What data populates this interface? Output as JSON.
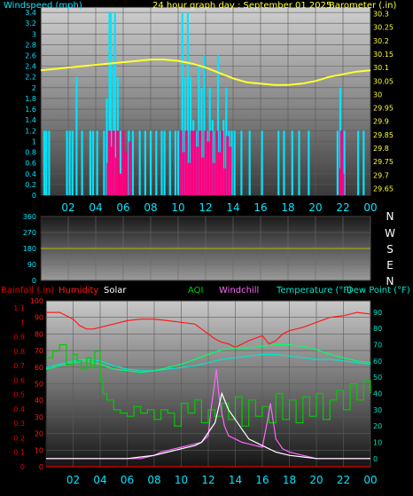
{
  "colors": {
    "windspeed": "#00e5ff",
    "gust": "#ff0080",
    "barometer": "#ffff33",
    "direction_line": "#b8b800",
    "rain": "#e00000",
    "humidity": "#ff1a1a",
    "solar": "#ffffff",
    "aqi": "#00cc00",
    "windchill": "#ff66ff",
    "temperature": "#00e5cc",
    "dewpoint": "#00ff66",
    "axis_left": "#00e5ff",
    "axis_right": "#ffff33",
    "hour_labels": "#00e5ff"
  },
  "chart_data": [
    {
      "type": "bar",
      "title": "24 hour graph day : September 01 2025",
      "ylabel_left": "Windspeed (mph)",
      "ylabel_right": "Barometer (.in)",
      "y_left_ticks": [
        "0",
        "0.2",
        "0.4",
        "0.6",
        "0.8",
        "1",
        "1.2",
        "1.4",
        "1.6",
        "1.8",
        "2",
        "2.2",
        "2.4",
        "2.6",
        "2.8",
        "3",
        "3.2",
        "3.4"
      ],
      "y_right_ticks": [
        "29.65",
        "29.7",
        "29.75",
        "29.8",
        "29.85",
        "29.9",
        "29.95",
        "30",
        "30.05",
        "30.1",
        "30.15",
        "30.2",
        "30.25",
        "30.3"
      ],
      "x_ticks": [
        "02",
        "04",
        "06",
        "08",
        "10",
        "12",
        "14",
        "16",
        "18",
        "20",
        "22",
        "00"
      ],
      "ylim_left": [
        0,
        3.5
      ],
      "ylim_right": [
        29.625,
        30.325
      ],
      "series": [
        {
          "name": "Windspeed (mph)",
          "type": "bar",
          "x": [
            0.25,
            0.4,
            0.6,
            1.9,
            2.1,
            2.3,
            2.6,
            3.0,
            3.6,
            3.8,
            4.1,
            4.6,
            4.8,
            5.0,
            5.1,
            5.3,
            5.4,
            5.6,
            5.8,
            6.0,
            6.4,
            6.7,
            7.2,
            7.6,
            8.0,
            8.4,
            8.8,
            9.0,
            9.4,
            9.8,
            10.0,
            10.3,
            10.5,
            10.7,
            10.9,
            11.1,
            11.3,
            11.5,
            11.7,
            11.9,
            12.1,
            12.3,
            12.5,
            12.7,
            12.9,
            13.1,
            13.3,
            13.5,
            13.7,
            13.9,
            14.1,
            14.6,
            15.2,
            16.1,
            17.3,
            17.7,
            18.3,
            18.8,
            19.5,
            21.6,
            21.8,
            22.1,
            23.1,
            23.5
          ],
          "values": [
            1.2,
            1.2,
            1.2,
            1.2,
            1.2,
            1.2,
            2.2,
            1.2,
            1.2,
            1.2,
            1.2,
            1.2,
            1.8,
            3.4,
            3.4,
            2.4,
            3.4,
            2.2,
            1.2,
            1.2,
            1.2,
            1.2,
            1.2,
            1.2,
            1.2,
            1.2,
            1.2,
            1.2,
            1.2,
            1.2,
            1.2,
            3.4,
            2.2,
            3.4,
            2.2,
            1.4,
            1.2,
            2.4,
            2.0,
            2.6,
            1.2,
            2.0,
            1.4,
            1.2,
            2.6,
            1.2,
            1.4,
            2.0,
            1.2,
            1.2,
            1.2,
            1.2,
            1.2,
            1.2,
            1.2,
            1.2,
            1.2,
            1.2,
            1.2,
            1.2,
            2.0,
            1.2,
            1.2,
            1.2
          ]
        },
        {
          "name": "Wind gust (mph)",
          "type": "bar",
          "x": [
            4.9,
            5.0,
            5.2,
            5.3,
            5.5,
            5.6,
            5.8,
            6.0,
            6.2,
            6.5,
            10.2,
            10.4,
            10.6,
            10.8,
            11.0,
            11.2,
            11.4,
            11.6,
            11.8,
            12.0,
            12.2,
            12.4,
            12.6,
            12.8,
            13.0,
            13.2,
            13.4,
            13.6,
            13.8,
            21.8,
            21.9,
            22.0
          ],
          "values": [
            0.6,
            1.2,
            0.9,
            1.2,
            0.7,
            1.2,
            0.4,
            1.2,
            0.8,
            1.0,
            1.2,
            0.8,
            1.2,
            0.6,
            1.2,
            1.2,
            0.9,
            1.2,
            0.7,
            1.2,
            1.0,
            1.2,
            0.6,
            1.2,
            0.8,
            1.2,
            0.5,
            1.1,
            0.9,
            0.5,
            1.2,
            0.4
          ]
        },
        {
          "name": "Barometer (.in)",
          "type": "line",
          "x": [
            0,
            1,
            2,
            3,
            4,
            5,
            6,
            7,
            8,
            9,
            10,
            11,
            12,
            13,
            14,
            15,
            16,
            17,
            18,
            19,
            20,
            21,
            22,
            23,
            24
          ],
          "values": [
            30.09,
            30.095,
            30.1,
            30.105,
            30.11,
            30.115,
            30.12,
            30.125,
            30.13,
            30.13,
            30.125,
            30.115,
            30.1,
            30.08,
            30.06,
            30.045,
            30.04,
            30.035,
            30.035,
            30.04,
            30.05,
            30.065,
            30.075,
            30.085,
            30.09
          ]
        }
      ]
    },
    {
      "type": "line",
      "ylabel": "Wind direction",
      "y_ticks": [
        "0",
        "90",
        "180",
        "270",
        "360"
      ],
      "ylim": [
        0,
        360
      ],
      "direction_labels": [
        "N",
        "W",
        "S",
        "E",
        "N"
      ],
      "x_ticks": [
        "02",
        "04",
        "06",
        "08",
        "10",
        "12",
        "14",
        "16",
        "18",
        "20",
        "22",
        "00"
      ],
      "series": [
        {
          "name": "Wind direction",
          "x": [
            0,
            24
          ],
          "values": [
            180,
            180
          ]
        }
      ]
    },
    {
      "type": "line",
      "legend": {
        "rainfall": "Rainfall (.in)",
        "humidity": "Humidity",
        "solar": "Solar",
        "aqi": "AQI",
        "windchill": "Windchill",
        "temperature": "Temperature (°F)",
        "dewpoint": "Dew Point (°F)"
      },
      "y_left_ticks": [
        "0",
        "10",
        "20",
        "30",
        "40",
        "50",
        "60",
        "70",
        "80",
        "90",
        "100"
      ],
      "y_rain_ticks": [
        "0",
        "0.1",
        "0.2",
        "0.3",
        "0.4",
        "0.5",
        "0.6",
        "0.7",
        "0.8",
        "0.9",
        "1",
        "1.1"
      ],
      "y_right_ticks": [
        "0",
        "10",
        "20",
        "30",
        "40",
        "50",
        "60",
        "70",
        "80",
        "90"
      ],
      "x_ticks": [
        "02",
        "04",
        "06",
        "08",
        "10",
        "12",
        "14",
        "16",
        "18",
        "20",
        "22",
        "00"
      ],
      "ylim_left": [
        0,
        100
      ],
      "ylim_right": [
        -5,
        97
      ],
      "series": [
        {
          "name": "Humidity",
          "x": [
            0,
            1,
            2,
            2.5,
            3,
            3.5,
            4,
            5,
            6,
            7,
            8,
            9,
            10,
            11,
            12,
            12.5,
            13,
            13.5,
            14,
            15,
            16,
            16.5,
            17,
            17.5,
            18,
            19,
            20,
            21,
            22,
            23,
            24
          ],
          "values": [
            93,
            93,
            89,
            85,
            83,
            83,
            84,
            86,
            88,
            89,
            89,
            88,
            87,
            86,
            80,
            77,
            75,
            74,
            72,
            76,
            79,
            74,
            76,
            80,
            82,
            84,
            87,
            90,
            91,
            93,
            92
          ]
        },
        {
          "name": "Temperature (°F)",
          "x": [
            0,
            1,
            2,
            3,
            4,
            5,
            6,
            7,
            8,
            9,
            10,
            11,
            12,
            13,
            14,
            15,
            16,
            17,
            18,
            19,
            20,
            21,
            22,
            23,
            24
          ],
          "values": [
            56,
            58,
            60,
            61,
            60,
            57,
            55,
            54,
            54,
            55,
            56,
            57,
            59,
            61,
            62,
            63,
            64,
            64,
            63,
            62,
            61,
            61,
            60,
            59,
            58
          ]
        },
        {
          "name": "Dew Point (°F)",
          "x": [
            0,
            1,
            2,
            3,
            4,
            5,
            6,
            7,
            8,
            9,
            10,
            11,
            12,
            13,
            14,
            15,
            16,
            17,
            18,
            19,
            20,
            21,
            22,
            23,
            24
          ],
          "values": [
            55,
            57,
            59,
            60,
            58,
            55,
            54,
            53,
            54,
            56,
            58,
            61,
            64,
            67,
            68,
            68,
            69,
            70,
            70,
            69,
            67,
            64,
            62,
            60,
            59
          ]
        },
        {
          "name": "AQI",
          "x": [
            0,
            0.5,
            1,
            1.5,
            2,
            2.3,
            2.6,
            3,
            3.3,
            3.6,
            4,
            4.2,
            4.5,
            5,
            5.5,
            6,
            6.5,
            7,
            7.5,
            8,
            8.5,
            9,
            9.5,
            10,
            10.5,
            11,
            11.5,
            12,
            12.5,
            13,
            13.5,
            14,
            14.5,
            15,
            15.5,
            16,
            16.5,
            17,
            17.5,
            18,
            18.5,
            19,
            19.5,
            20,
            20.5,
            21,
            21.5,
            22,
            22.5,
            23,
            23.5,
            24
          ],
          "values": [
            62,
            66,
            70,
            58,
            64,
            60,
            55,
            62,
            56,
            66,
            48,
            40,
            36,
            30,
            28,
            26,
            32,
            28,
            30,
            24,
            30,
            28,
            20,
            34,
            28,
            36,
            22,
            30,
            26,
            34,
            24,
            38,
            20,
            36,
            26,
            32,
            22,
            40,
            24,
            36,
            22,
            38,
            26,
            40,
            24,
            36,
            42,
            30,
            46,
            36,
            48,
            40
          ]
        },
        {
          "name": "Windchill",
          "x": [
            0,
            6,
            7,
            7.5,
            8,
            8.5,
            9,
            9.5,
            10,
            10.5,
            11,
            11.5,
            12,
            12.2,
            12.4,
            12.6,
            12.8,
            13,
            13.2,
            13.5,
            14,
            14.5,
            15,
            15.5,
            16,
            16.3,
            16.6,
            17,
            17.5,
            18,
            19,
            20,
            24
          ],
          "values": [
            0,
            0,
            0,
            1,
            2,
            4,
            5,
            6,
            7,
            8,
            9,
            10,
            14,
            30,
            42,
            55,
            38,
            28,
            20,
            14,
            12,
            10,
            9,
            8,
            7,
            20,
            34,
            12,
            6,
            4,
            2,
            0,
            0
          ]
        },
        {
          "name": "Solar",
          "x": [
            0,
            6,
            7,
            8,
            9,
            10,
            11,
            11.5,
            12,
            12.5,
            13,
            13.5,
            14,
            14.5,
            15,
            16,
            17,
            18,
            19,
            20,
            24
          ],
          "values": [
            0,
            0,
            1,
            2,
            4,
            6,
            8,
            10,
            16,
            22,
            40,
            30,
            24,
            18,
            12,
            8,
            4,
            2,
            1,
            0,
            0
          ]
        },
        {
          "name": "Rainfall (.in)",
          "x": [
            0,
            24
          ],
          "values": [
            0,
            0
          ]
        }
      ]
    }
  ]
}
